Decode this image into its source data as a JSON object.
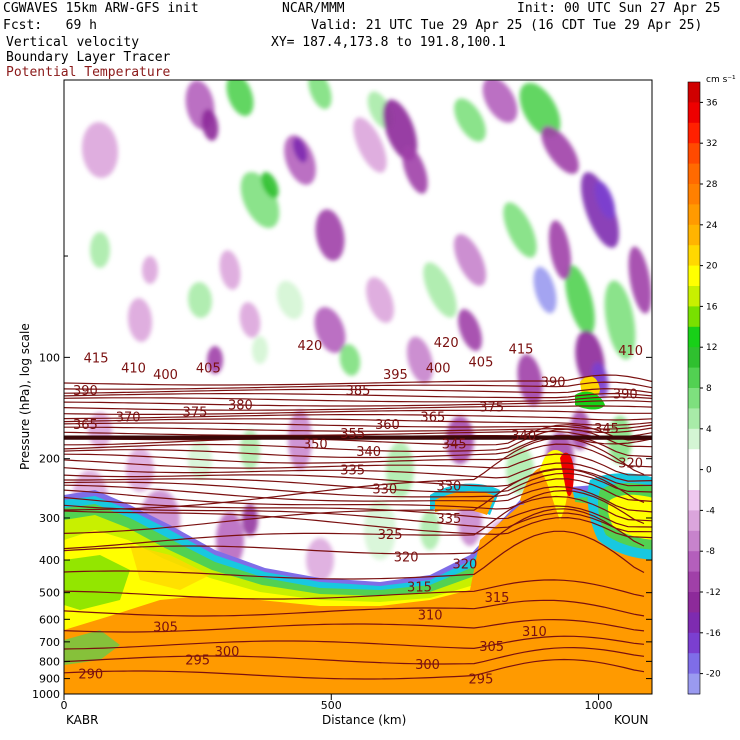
{
  "header": {
    "model": "CGWAVES 15km ARW-GFS init",
    "org": "NCAR/MMM",
    "init": "Init: 00 UTC Sun 27 Apr 25",
    "fcst": "Fcst:   69 h",
    "valid": "Valid: 21 UTC Tue 29 Apr 25 (16 CDT Tue 29 Apr 25)",
    "field1": "Vertical velocity",
    "field2": "Boundary Layer Tracer",
    "field3": "Potential Temperature",
    "xy": "XY= 187.4,173.8 to 191.8,100.1"
  },
  "colors": {
    "theta": "#7a1010",
    "field3_text": "#8b1a1a"
  },
  "chart_data": {
    "type": "heatmap",
    "xlabel": "Distance (km)",
    "ylabel": "Pressure (hPa), log scale",
    "xlim": [
      0,
      1100
    ],
    "ylim": [
      1000,
      15
    ],
    "x_ticks": [
      0,
      500,
      1000
    ],
    "y_ticks": [
      100,
      200,
      300,
      400,
      500,
      600,
      700,
      800,
      900,
      1000
    ],
    "x_end_labels": {
      "left": "KABR",
      "right": "KOUN"
    },
    "colorbar": {
      "units": "cm s⁻¹",
      "ticks": [
        -20,
        -16,
        -12,
        -8,
        -4,
        0,
        4,
        8,
        12,
        16,
        20,
        24,
        28,
        32,
        36
      ],
      "colors": [
        "#9a9af0",
        "#7f6de8",
        "#7b3fd0",
        "#7e2bb0",
        "#8d2a9a",
        "#a040a8",
        "#b45fbc",
        "#c783cc",
        "#dba5dc",
        "#efc8ef",
        "#ffffff",
        "#ffffff",
        "#d4f5d4",
        "#a8eba8",
        "#7ee07e",
        "#52d152",
        "#2fc02f",
        "#18d018",
        "#78e000",
        "#c8f000",
        "#ffff00",
        "#ffd800",
        "#ffb400",
        "#ff9a00",
        "#ff8000",
        "#ff6a00",
        "#ff4a00",
        "#ff2000",
        "#ee0000",
        "#d00000"
      ]
    },
    "theta_labels": [
      {
        "text": "415",
        "x": 60,
        "p": 100
      },
      {
        "text": "410",
        "x": 130,
        "p": 107
      },
      {
        "text": "400",
        "x": 190,
        "p": 112
      },
      {
        "text": "405",
        "x": 270,
        "p": 107
      },
      {
        "text": "420",
        "x": 460,
        "p": 92
      },
      {
        "text": "390",
        "x": 40,
        "p": 125
      },
      {
        "text": "375",
        "x": 245,
        "p": 145
      },
      {
        "text": "380",
        "x": 330,
        "p": 138
      },
      {
        "text": "385",
        "x": 550,
        "p": 125
      },
      {
        "text": "395",
        "x": 620,
        "p": 112
      },
      {
        "text": "400",
        "x": 700,
        "p": 107
      },
      {
        "text": "405",
        "x": 780,
        "p": 103
      },
      {
        "text": "420",
        "x": 715,
        "p": 90
      },
      {
        "text": "415",
        "x": 855,
        "p": 94
      },
      {
        "text": "410",
        "x": 1060,
        "p": 95
      },
      {
        "text": "365",
        "x": 40,
        "p": 158
      },
      {
        "text": "370",
        "x": 120,
        "p": 150
      },
      {
        "text": "360",
        "x": 605,
        "p": 158
      },
      {
        "text": "365",
        "x": 690,
        "p": 150
      },
      {
        "text": "375",
        "x": 800,
        "p": 140
      },
      {
        "text": "390",
        "x": 915,
        "p": 118
      },
      {
        "text": "390",
        "x": 1050,
        "p": 128
      },
      {
        "text": "350",
        "x": 470,
        "p": 180
      },
      {
        "text": "355",
        "x": 540,
        "p": 168
      },
      {
        "text": "340",
        "x": 570,
        "p": 190
      },
      {
        "text": "345",
        "x": 730,
        "p": 180
      },
      {
        "text": "340",
        "x": 860,
        "p": 170
      },
      {
        "text": "345",
        "x": 1015,
        "p": 162
      },
      {
        "text": "335",
        "x": 540,
        "p": 215
      },
      {
        "text": "330",
        "x": 600,
        "p": 245
      },
      {
        "text": "330",
        "x": 720,
        "p": 240
      },
      {
        "text": "320",
        "x": 1060,
        "p": 205
      },
      {
        "text": "325",
        "x": 610,
        "p": 335
      },
      {
        "text": "335",
        "x": 720,
        "p": 300
      },
      {
        "text": "320",
        "x": 640,
        "p": 390
      },
      {
        "text": "320",
        "x": 750,
        "p": 410
      },
      {
        "text": "315",
        "x": 665,
        "p": 480
      },
      {
        "text": "315",
        "x": 810,
        "p": 515
      },
      {
        "text": "310",
        "x": 685,
        "p": 580
      },
      {
        "text": "310",
        "x": 880,
        "p": 650
      },
      {
        "text": "305",
        "x": 190,
        "p": 630
      },
      {
        "text": "305",
        "x": 800,
        "p": 720
      },
      {
        "text": "300",
        "x": 305,
        "p": 745
      },
      {
        "text": "300",
        "x": 680,
        "p": 815
      },
      {
        "text": "295",
        "x": 250,
        "p": 790
      },
      {
        "text": "295",
        "x": 780,
        "p": 900
      },
      {
        "text": "290",
        "x": 50,
        "p": 870
      }
    ]
  }
}
